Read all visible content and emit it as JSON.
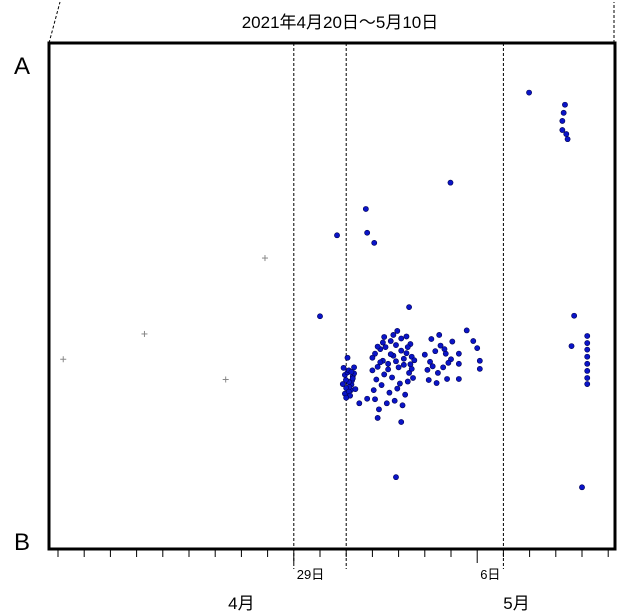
{
  "chart_data": {
    "type": "scatter",
    "title": "2021年4月20日〜5月10日",
    "y_top_label": "A",
    "y_bottom_label": "B",
    "x_range_days": [
      0,
      21
    ],
    "y_range": [
      0,
      100
    ],
    "grid": false,
    "day_labels": [
      {
        "day": 9,
        "text": "29日"
      },
      {
        "day": 16,
        "text": "6日"
      }
    ],
    "month_labels": [
      {
        "day": 7,
        "text": "4月"
      },
      {
        "day": 17.5,
        "text": "5月"
      }
    ],
    "dashed_lines_days": [
      9,
      11,
      17
    ],
    "plus_markers": [
      [
        0.2,
        37.5
      ],
      [
        3.3,
        42.5
      ],
      [
        6.4,
        33.5
      ],
      [
        7.9,
        57.5
      ]
    ],
    "points": [
      [
        10,
        46
      ],
      [
        10.65,
        62
      ],
      [
        11.8,
        62.5
      ],
      [
        11.75,
        67.2
      ],
      [
        12.07,
        60.5
      ],
      [
        13.4,
        47.8
      ],
      [
        14.98,
        72.4
      ],
      [
        17.98,
        90.2
      ],
      [
        19.6,
        40.1
      ],
      [
        19.7,
        46.1
      ],
      [
        11.2,
        32.5
      ],
      [
        11.5,
        28.8
      ],
      [
        11.8,
        29.7
      ],
      [
        12.2,
        25.9
      ],
      [
        12.9,
        14.2
      ],
      [
        13.1,
        25.1
      ],
      [
        11.18,
        31.4
      ],
      [
        11.22,
        33.3
      ],
      [
        11.25,
        34.1
      ],
      [
        11.12,
        32.0
      ],
      [
        11.3,
        34.7
      ],
      [
        11.1,
        33.0
      ],
      [
        10.99,
        33.4
      ],
      [
        10.95,
        34.4
      ],
      [
        11.0,
        31.8
      ],
      [
        10.95,
        30.7
      ],
      [
        11.1,
        31.1
      ],
      [
        11.05,
        34.9
      ],
      [
        11.1,
        35.3
      ],
      [
        11.05,
        37.8
      ],
      [
        11.25,
        33.7
      ],
      [
        10.9,
        35.8
      ],
      [
        11.15,
        30.3
      ],
      [
        11.35,
        31.6
      ],
      [
        11.0,
        29.9
      ],
      [
        10.87,
        32.6
      ],
      [
        11.3,
        35.9
      ],
      [
        11.2,
        35.0
      ],
      [
        12.0,
        35.3
      ],
      [
        12.2,
        36.0
      ],
      [
        12.4,
        37.2
      ],
      [
        12.6,
        36.6
      ],
      [
        12.8,
        38.2
      ],
      [
        13.0,
        35.9
      ],
      [
        13.2,
        36.4
      ],
      [
        13.4,
        34.8
      ],
      [
        12.1,
        38.6
      ],
      [
        12.3,
        39.5
      ],
      [
        12.5,
        39.9
      ],
      [
        12.7,
        41.1
      ],
      [
        12.9,
        40.3
      ],
      [
        13.1,
        39.2
      ],
      [
        13.3,
        38.7
      ],
      [
        12.15,
        33.5
      ],
      [
        12.45,
        34.5
      ],
      [
        12.75,
        33.9
      ],
      [
        13.05,
        32.7
      ],
      [
        13.35,
        33.1
      ],
      [
        12.05,
        31.4
      ],
      [
        12.35,
        32.4
      ],
      [
        12.65,
        30.9
      ],
      [
        12.95,
        31.7
      ],
      [
        13.25,
        30.5
      ],
      [
        12.1,
        29.6
      ],
      [
        12.55,
        28.8
      ],
      [
        12.85,
        29.3
      ],
      [
        13.15,
        28.4
      ],
      [
        12.25,
        27.6
      ],
      [
        12.0,
        37.8
      ],
      [
        12.3,
        36.9
      ],
      [
        12.6,
        35.5
      ],
      [
        12.9,
        37.1
      ],
      [
        13.2,
        37.6
      ],
      [
        13.45,
        36.5
      ],
      [
        13.5,
        38.0
      ],
      [
        13.1,
        41.6
      ],
      [
        12.4,
        40.8
      ],
      [
        12.8,
        42.3
      ],
      [
        12.95,
        43.1
      ],
      [
        13.3,
        42.0
      ],
      [
        13.45,
        40.5
      ],
      [
        13.5,
        35.6
      ],
      [
        12.2,
        40.0
      ],
      [
        13.55,
        33.8
      ],
      [
        13.6,
        37.3
      ],
      [
        12.45,
        41.9
      ],
      [
        12.7,
        38.5
      ],
      [
        13.35,
        39.9
      ],
      [
        14.0,
        38.4
      ],
      [
        14.2,
        37.0
      ],
      [
        14.4,
        39.1
      ],
      [
        14.6,
        40.2
      ],
      [
        14.8,
        38.6
      ],
      [
        15.0,
        37.5
      ],
      [
        14.1,
        35.4
      ],
      [
        14.3,
        36.1
      ],
      [
        14.5,
        34.8
      ],
      [
        14.7,
        35.9
      ],
      [
        14.9,
        36.8
      ],
      [
        14.25,
        41.5
      ],
      [
        14.55,
        42.3
      ],
      [
        14.75,
        39.5
      ],
      [
        15.05,
        41.0
      ],
      [
        14.15,
        33.4
      ],
      [
        14.45,
        32.8
      ],
      [
        14.85,
        33.6
      ],
      [
        15.3,
        38.6
      ],
      [
        15.3,
        36.6
      ],
      [
        15.3,
        33.6
      ],
      [
        15.6,
        43.2
      ],
      [
        15.85,
        41.1
      ],
      [
        16.0,
        39.7
      ],
      [
        16.1,
        37.2
      ],
      [
        16.1,
        35.6
      ],
      [
        20.2,
        42.1
      ],
      [
        20.2,
        40.7
      ],
      [
        20.2,
        39.4
      ],
      [
        20.2,
        38.0
      ],
      [
        20.2,
        36.6
      ],
      [
        20.2,
        35.2
      ],
      [
        20.2,
        33.8
      ],
      [
        20.2,
        32.6
      ],
      [
        20.0,
        12.2
      ],
      [
        19.25,
        84.6
      ],
      [
        19.3,
        86.2
      ],
      [
        19.35,
        87.8
      ],
      [
        19.25,
        82.8
      ],
      [
        19.4,
        82.0
      ],
      [
        19.45,
        81.0
      ]
    ],
    "colors": {
      "points": "#0a14c8",
      "point_outline": "#000050",
      "plus": "#888888",
      "frame": "#000000"
    }
  }
}
